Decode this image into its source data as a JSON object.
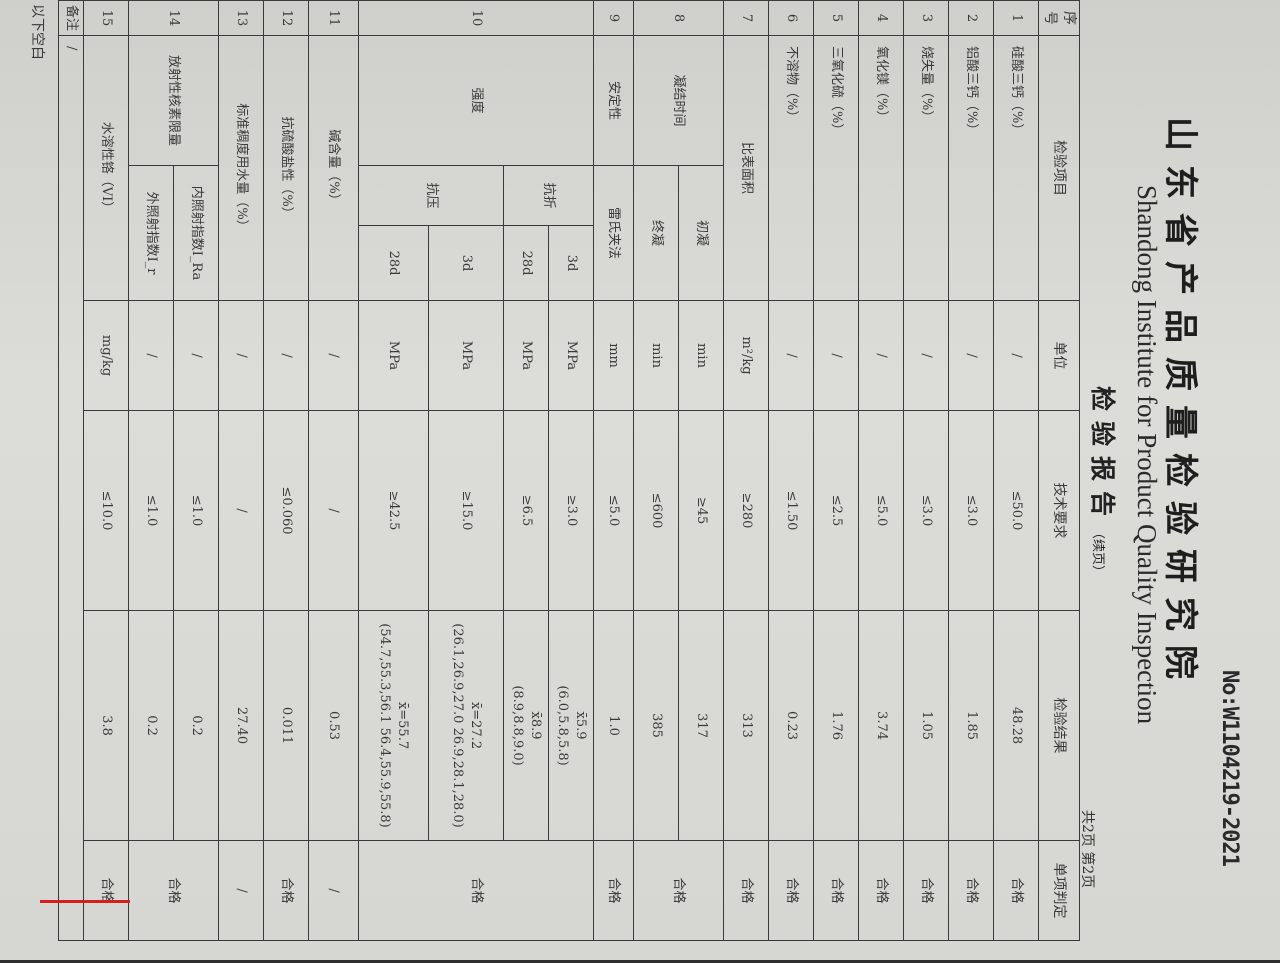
{
  "report_no": "No:W1104219-2021",
  "title_cn": "山东省产品质量检验研究院",
  "title_en": "Shandong Institute for Product Quality Inspection",
  "title_report": "检验报告",
  "title_cont": "（续页）",
  "page_count": "共2页  第2页",
  "headers": {
    "no": "序号",
    "item": "检验项目",
    "unit": "单位",
    "requirement": "技术要求",
    "result": "检验结果",
    "verdict": "单项判定"
  },
  "rows": [
    {
      "no": "1",
      "item": "硅酸三钙（%）",
      "unit": "/",
      "req": "≤50.0",
      "result": "48.28",
      "verdict": "合格"
    },
    {
      "no": "2",
      "item": "铝酸三钙（%）",
      "unit": "/",
      "req": "≤3.0",
      "result": "1.85",
      "verdict": "合格"
    },
    {
      "no": "3",
      "item": "烧失量（%）",
      "unit": "/",
      "req": "≤3.0",
      "result": "1.05",
      "verdict": "合格"
    },
    {
      "no": "4",
      "item": "氧化镁（%）",
      "unit": "/",
      "req": "≤5.0",
      "result": "3.74",
      "verdict": "合格"
    },
    {
      "no": "5",
      "item": "三氧化硫（%）",
      "unit": "/",
      "req": "≤2.5",
      "result": "1.76",
      "verdict": "合格"
    },
    {
      "no": "6",
      "item": "不溶物（%）",
      "unit": "/",
      "req": "≤1.50",
      "result": "0.23",
      "verdict": "合格"
    },
    {
      "no": "7",
      "item": "比表面积",
      "unit": "m²/kg",
      "req": "≥280",
      "result": "313",
      "verdict": "合格"
    },
    {
      "no": "8",
      "item": "凝结时间",
      "sub": [
        {
          "name": "初凝",
          "unit": "min",
          "req": "≥45",
          "result": "317"
        },
        {
          "name": "终凝",
          "unit": "min",
          "req": "≤600",
          "result": "385"
        }
      ],
      "verdict": "合格"
    },
    {
      "no": "9",
      "item": "安定性",
      "sub_name": "雷氏夹法",
      "unit": "mm",
      "req": "≤5.0",
      "result": "1.0",
      "verdict": "合格"
    },
    {
      "no": "10",
      "item": "强度",
      "groups": [
        {
          "name": "抗折",
          "sub": [
            {
              "age": "3d",
              "unit": "MPa",
              "req": "≥3.0",
              "mean": "x̄5.9",
              "values": "(6.0,5.8,5.8)"
            },
            {
              "age": "28d",
              "unit": "MPa",
              "req": "≥6.5",
              "mean": "x̄8.9",
              "values": "(8.9,8.8,9.0)"
            }
          ]
        },
        {
          "name": "抗压",
          "sub": [
            {
              "age": "3d",
              "unit": "MPa",
              "req": "≥15.0",
              "mean": "x̄=27.2",
              "values": "(26.1,26.9,27.0 26.9,28.1,28.0)"
            },
            {
              "age": "28d",
              "unit": "MPa",
              "req": "≥42.5",
              "mean": "x̄=55.7",
              "values": "(54.7,55.3,56.1 56.4,55.9,55.8)"
            }
          ]
        }
      ],
      "verdict": "合格"
    },
    {
      "no": "11",
      "item": "碱含量（%）",
      "unit": "/",
      "req": "/",
      "result": "0.53",
      "verdict": "/"
    },
    {
      "no": "12",
      "item": "抗硫酸盐性（%）",
      "unit": "/",
      "req": "≤0.060",
      "result": "0.011",
      "verdict": "合格"
    },
    {
      "no": "13",
      "item": "标准稠度用水量（%）",
      "unit": "/",
      "req": "/",
      "result": "27.40",
      "verdict": "/"
    },
    {
      "no": "14",
      "item": "放射性核素限量",
      "sub": [
        {
          "name": "内照射指数I_Ra",
          "unit": "/",
          "req": "≤1.0",
          "result": "0.2"
        },
        {
          "name": "外照射指数I_r",
          "unit": "/",
          "req": "≤1.0",
          "result": "0.2"
        }
      ],
      "verdict": "合格"
    },
    {
      "no": "15",
      "item": "水溶性铬（VI）",
      "unit": "mg/kg",
      "req": "≤10.0",
      "result": "3.8",
      "verdict": "合格"
    }
  ],
  "remark_label": "备注",
  "remark_value": "/",
  "footnote": "以下空白",
  "colors": {
    "paper": "#dcdcd8",
    "ink": "#3a3a3a",
    "stamp": "#c81e1e"
  }
}
